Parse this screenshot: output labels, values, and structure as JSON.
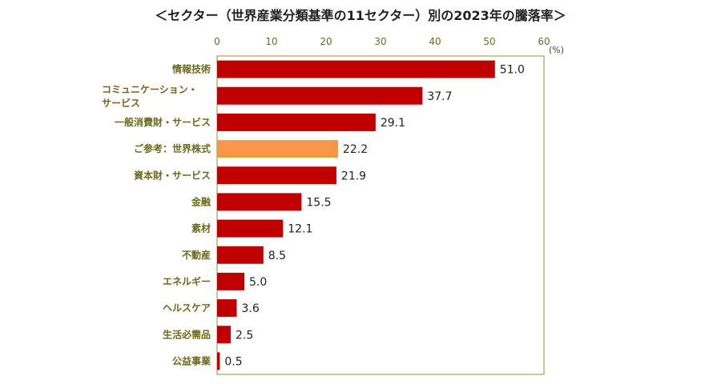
{
  "chart_data": {
    "type": "bar",
    "orientation": "horizontal",
    "title": "＜セクター（世界産業分類基準の11セクター）別の2023年の騰落率＞",
    "unit": "(%)",
    "xlim": [
      0,
      60
    ],
    "xticks": [
      0,
      10,
      20,
      30,
      40,
      50,
      60
    ],
    "categories": [
      "情報技術",
      "コミュニケーション・サービス",
      "一般消費財・サービス",
      "ご参考：世界株式",
      "資本財・サービス",
      "金融",
      "素材",
      "不動産",
      "エネルギー",
      "ヘルスケア",
      "生活必需品",
      "公益事業"
    ],
    "category_lines": [
      [
        "情報技術"
      ],
      [
        "コミュニケーション・",
        "サービス"
      ],
      [
        "一般消費財・サービス"
      ],
      [
        "ご参考：世界株式"
      ],
      [
        "資本財・サービス"
      ],
      [
        "金融"
      ],
      [
        "素材"
      ],
      [
        "不動産"
      ],
      [
        "エネルギー"
      ],
      [
        "ヘルスケア"
      ],
      [
        "生活必需品"
      ],
      [
        "公益事業"
      ]
    ],
    "values": [
      51.0,
      37.7,
      29.1,
      22.2,
      21.9,
      15.5,
      12.1,
      8.5,
      5.0,
      3.6,
      2.5,
      0.5
    ],
    "value_labels": [
      "51.0",
      "37.7",
      "29.1",
      "22.2",
      "21.9",
      "15.5",
      "12.1",
      "8.5",
      "5.0",
      "3.6",
      "2.5",
      "0.5"
    ],
    "highlight_index": 3,
    "colors": {
      "bar": "#c00000",
      "highlight": "#f79646",
      "axis": "#8c8c3c",
      "label": "#6b6b1e"
    },
    "grid": false
  }
}
